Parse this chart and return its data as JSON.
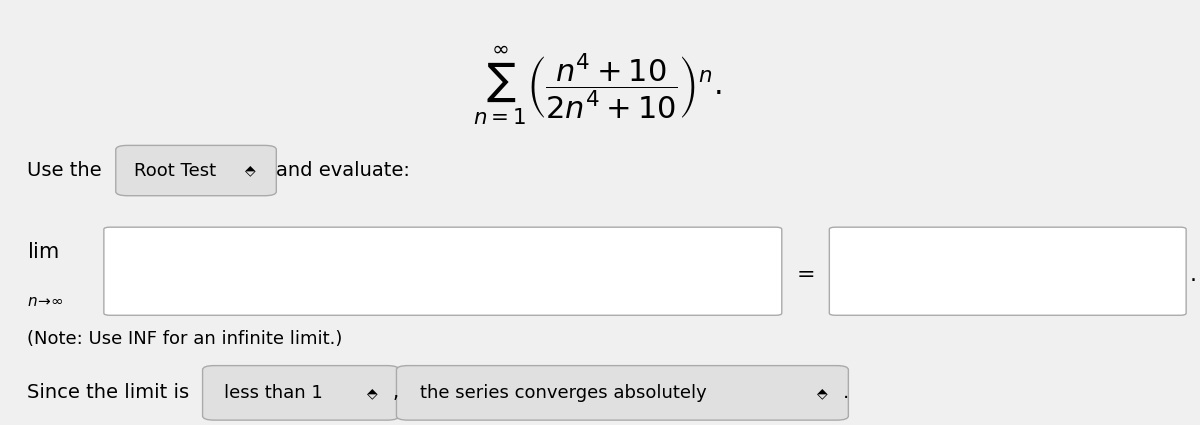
{
  "bg_color": "#f0f0f0",
  "white": "#ffffff",
  "series_formula": "$\\sum_{n=1}^{\\infty} \\left(\\dfrac{n^4 + 10}{2n^4 + 10}\\right)^n.$",
  "line1_prefix": "Use the",
  "line1_dropdown": "Root Test",
  "line1_suffix": "and evaluate:",
  "lim_text": "$\\lim_{n\\to\\infty}$",
  "equals": "=",
  "note_text": "(Note: Use INF for an infinite limit.)",
  "line3_prefix": "Since the limit is",
  "dropdown2": "less than 1",
  "line3_mid": ",",
  "dropdown3": "the series converges absolutely",
  "text_color": "#000000",
  "border_color": "#aaaaaa",
  "dropdown_bg": "#e0e0e0"
}
